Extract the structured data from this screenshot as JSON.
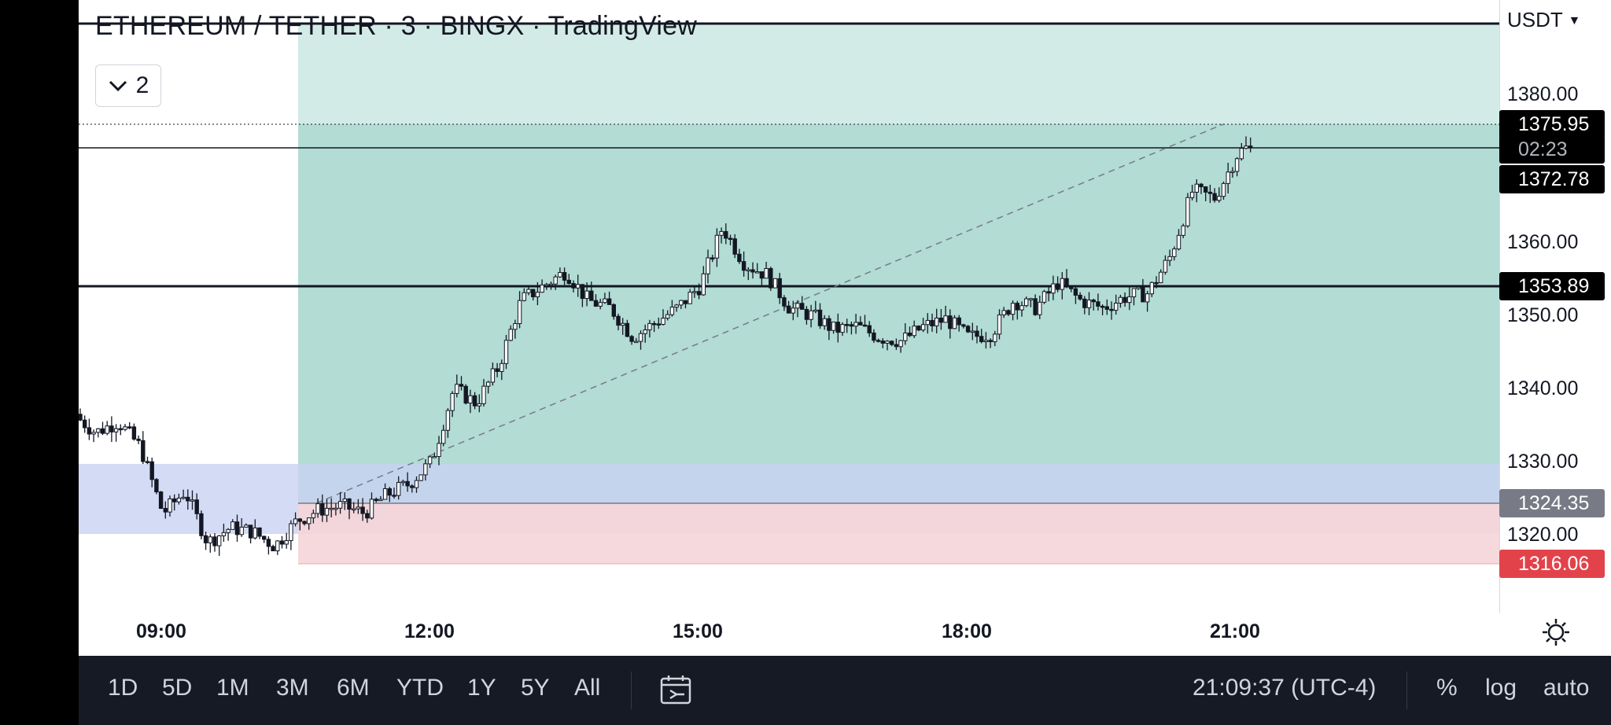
{
  "header": {
    "title": "ETHEREUM / TETHER · 3 · BINGX · TradingView",
    "indicator_count": "2"
  },
  "price_scale": {
    "currency": "USDT",
    "ticks": [
      "1380.00",
      "1360.00",
      "1350.00",
      "1340.00",
      "1330.00",
      "1320.00"
    ],
    "badges": {
      "target": "1375.95",
      "countdown": "02:23",
      "last": "1372.78",
      "level": "1353.89",
      "entry": "1324.35",
      "stop": "1316.06"
    }
  },
  "time_axis": {
    "labels": [
      "09:00",
      "12:00",
      "15:00",
      "18:00",
      "21:00"
    ]
  },
  "toolbar": {
    "ranges": [
      "1D",
      "5D",
      "1M",
      "3M",
      "6M",
      "YTD",
      "1Y",
      "5Y",
      "All"
    ],
    "clock": "21:09:37 (UTC-4)",
    "percent": "%",
    "log": "log",
    "auto": "auto"
  },
  "colors": {
    "profit_zone": "#b2dcd4",
    "profit_zone_light": "#d3ebe6",
    "loss_zone": "#f5d5d8",
    "blue_zone": "#d5dbf3",
    "candle": "#131722",
    "badge_dark": "#000000",
    "badge_gray": "#787b86",
    "badge_red": "#e2434b",
    "toolbar_bg": "#161a25"
  },
  "chart_data": {
    "type": "candlestick",
    "title": "ETHEREUM / TETHER · 3 · BINGX · TradingView",
    "xlabel": "",
    "ylabel": "",
    "ylim": [
      1310,
      1388
    ],
    "x_ticks": [
      "09:00",
      "12:00",
      "15:00",
      "18:00",
      "21:00"
    ],
    "position": {
      "entry": 1324.35,
      "target": 1375.95,
      "stop": 1316.06
    },
    "horizontal_levels": [
      1375.95,
      1372.78,
      1353.89
    ],
    "close_path": [
      {
        "t": "08:00",
        "c": 1336.5
      },
      {
        "t": "08:15",
        "c": 1334.0
      },
      {
        "t": "08:30",
        "c": 1335.5
      },
      {
        "t": "08:45",
        "c": 1332.0
      },
      {
        "t": "09:00",
        "c": 1323.0
      },
      {
        "t": "09:15",
        "c": 1326.0
      },
      {
        "t": "09:30",
        "c": 1319.0
      },
      {
        "t": "09:45",
        "c": 1321.0
      },
      {
        "t": "10:00",
        "c": 1320.5
      },
      {
        "t": "10:15",
        "c": 1318.5
      },
      {
        "t": "10:30",
        "c": 1322.0
      },
      {
        "t": "10:45",
        "c": 1323.5
      },
      {
        "t": "11:00",
        "c": 1324.0
      },
      {
        "t": "11:15",
        "c": 1323.0
      },
      {
        "t": "11:30",
        "c": 1325.5
      },
      {
        "t": "11:45",
        "c": 1327.0
      },
      {
        "t": "12:00",
        "c": 1330.0
      },
      {
        "t": "12:15",
        "c": 1340.0
      },
      {
        "t": "12:30",
        "c": 1338.0
      },
      {
        "t": "12:45",
        "c": 1343.0
      },
      {
        "t": "13:00",
        "c": 1352.0
      },
      {
        "t": "13:15",
        "c": 1354.0
      },
      {
        "t": "13:30",
        "c": 1356.0
      },
      {
        "t": "13:45",
        "c": 1352.0
      },
      {
        "t": "14:00",
        "c": 1351.0
      },
      {
        "t": "14:15",
        "c": 1347.0
      },
      {
        "t": "14:30",
        "c": 1349.0
      },
      {
        "t": "14:45",
        "c": 1351.0
      },
      {
        "t": "15:00",
        "c": 1354.0
      },
      {
        "t": "15:15",
        "c": 1362.0
      },
      {
        "t": "15:30",
        "c": 1357.0
      },
      {
        "t": "15:45",
        "c": 1355.5
      },
      {
        "t": "16:00",
        "c": 1351.0
      },
      {
        "t": "16:15",
        "c": 1350.0
      },
      {
        "t": "16:30",
        "c": 1348.0
      },
      {
        "t": "16:45",
        "c": 1348.5
      },
      {
        "t": "17:00",
        "c": 1347.0
      },
      {
        "t": "17:15",
        "c": 1346.5
      },
      {
        "t": "17:30",
        "c": 1348.5
      },
      {
        "t": "17:45",
        "c": 1349.5
      },
      {
        "t": "18:00",
        "c": 1347.0
      },
      {
        "t": "18:15",
        "c": 1347.5
      },
      {
        "t": "18:30",
        "c": 1352.0
      },
      {
        "t": "18:45",
        "c": 1351.0
      },
      {
        "t": "19:00",
        "c": 1354.5
      },
      {
        "t": "19:15",
        "c": 1352.0
      },
      {
        "t": "19:30",
        "c": 1351.0
      },
      {
        "t": "19:45",
        "c": 1352.5
      },
      {
        "t": "20:00",
        "c": 1353.0
      },
      {
        "t": "20:15",
        "c": 1358.0
      },
      {
        "t": "20:30",
        "c": 1367.0
      },
      {
        "t": "20:45",
        "c": 1366.0
      },
      {
        "t": "21:00",
        "c": 1372.0
      },
      {
        "t": "21:05",
        "c": 1372.78
      }
    ]
  }
}
